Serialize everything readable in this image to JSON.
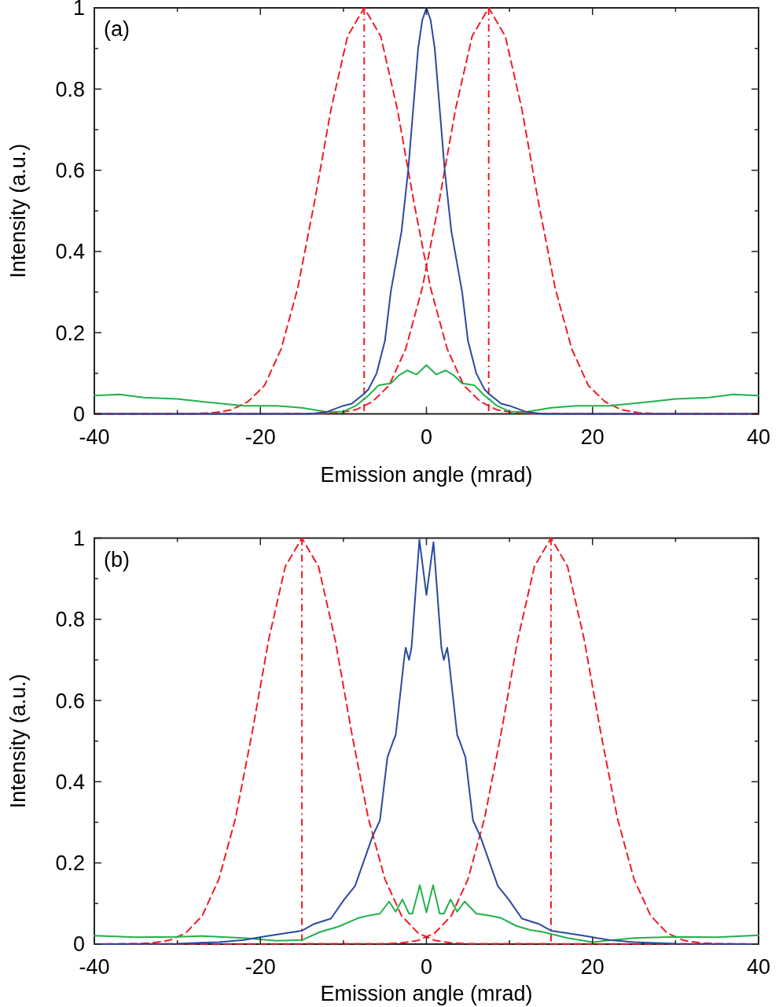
{
  "chart_data": [
    {
      "type": "line",
      "xlabel": "Emission angle (mrad)",
      "ylabel": "Intensity (a.u.)",
      "annotations": [
        "(a)"
      ],
      "xlim": [
        -40,
        40
      ],
      "ylim": [
        0,
        1
      ],
      "xticks": [
        -40,
        {
          "value": -30,
          "label": null
        },
        -20,
        {
          "value": -10,
          "label": null
        },
        0,
        {
          "value": 10,
          "label": null
        },
        20,
        {
          "value": 30,
          "label": null
        },
        40
      ],
      "yticks": [
        0,
        {
          "value": 0.1,
          "label": null
        },
        0.2,
        {
          "value": 0.3,
          "label": null
        },
        0.4,
        {
          "value": 0.5,
          "label": null
        },
        0.6,
        {
          "value": 0.7,
          "label": null
        },
        0.8,
        {
          "value": 0.9,
          "label": null
        },
        1
      ],
      "grid": false,
      "marker": "none",
      "ref_lines": [
        {
          "axis": "x",
          "value": -7.5,
          "color": "#ee1c25",
          "line_style": "dashdot"
        },
        {
          "axis": "x",
          "value": 7.5,
          "color": "#ee1c25",
          "line_style": "dashdot"
        }
      ],
      "series": [
        {
          "color": "#ee1c25",
          "line_style": "dashed",
          "x": [
            -40,
            -27.5,
            -25.5,
            -23.5,
            -21.5,
            -19.5,
            -17.5,
            -15.5,
            -13.5,
            -11.5,
            -9.5,
            -7.5,
            -5.5,
            -3.5,
            -1.5,
            0.5,
            2.5,
            4.5,
            6.5,
            8.5,
            10.5,
            12.5,
            40
          ],
          "values": [
            0,
            0.001,
            0.003,
            0.01,
            0.03,
            0.07,
            0.16,
            0.31,
            0.52,
            0.75,
            0.93,
            1,
            0.93,
            0.75,
            0.52,
            0.31,
            0.16,
            0.07,
            0.03,
            0.01,
            0.003,
            0.001,
            0
          ]
        },
        {
          "color": "#ee1c25",
          "line_style": "dashed",
          "x": [
            -40,
            -12.5,
            -10.5,
            -8.5,
            -6.5,
            -4.5,
            -2.5,
            -0.5,
            1.5,
            3.5,
            5.5,
            7.5,
            9.5,
            11.5,
            13.5,
            15.5,
            17.5,
            19.5,
            21.5,
            23.5,
            25.5,
            27.5,
            40
          ],
          "values": [
            0,
            0.001,
            0.003,
            0.01,
            0.03,
            0.07,
            0.16,
            0.31,
            0.52,
            0.75,
            0.93,
            1,
            0.93,
            0.75,
            0.52,
            0.31,
            0.16,
            0.07,
            0.03,
            0.01,
            0.003,
            0.001,
            0
          ]
        },
        {
          "color": "#22b14c",
          "line_style": "solid",
          "x": [
            -40,
            -37,
            -34,
            -30,
            -27,
            -22,
            -18,
            -15,
            -12,
            -10,
            -8.5,
            -7.5,
            -7,
            -5.8,
            -5,
            -4.3,
            -3.3,
            -2.3,
            -1.2,
            0,
            1.2,
            2.3,
            3.3,
            4.3,
            5,
            5.8,
            7,
            7.5,
            8.5,
            10,
            12,
            15,
            18,
            22,
            27,
            30,
            34,
            37,
            40
          ],
          "values": [
            0.045,
            0.048,
            0.04,
            0.037,
            0.03,
            0.02,
            0.02,
            0.015,
            0.005,
            0.006,
            0.02,
            0.037,
            0.045,
            0.07,
            0.073,
            0.075,
            0.095,
            0.107,
            0.097,
            0.12,
            0.097,
            0.107,
            0.095,
            0.075,
            0.073,
            0.07,
            0.045,
            0.037,
            0.02,
            0.006,
            0.005,
            0.015,
            0.02,
            0.02,
            0.03,
            0.037,
            0.04,
            0.048,
            0.045
          ]
        },
        {
          "color": "#2a4aa0",
          "line_style": "solid",
          "x": [
            -40,
            -14,
            -12,
            -10,
            -9,
            -7.5,
            -7,
            -6,
            -5,
            -4.3,
            -3,
            -2.2,
            -1,
            -0.5,
            0,
            0.5,
            1,
            2.2,
            3,
            4.3,
            5,
            6,
            7,
            7.5,
            9,
            10,
            12,
            14,
            40
          ],
          "values": [
            0,
            0,
            0.005,
            0.02,
            0.025,
            0.05,
            0.06,
            0.1,
            0.18,
            0.3,
            0.45,
            0.6,
            0.9,
            0.97,
            1,
            0.97,
            0.9,
            0.6,
            0.45,
            0.3,
            0.18,
            0.1,
            0.06,
            0.05,
            0.025,
            0.02,
            0.005,
            0,
            0
          ]
        }
      ]
    },
    {
      "type": "line",
      "xlabel": "Emission angle (mrad)",
      "ylabel": "Intensity (a.u.)",
      "annotations": [
        "(b)"
      ],
      "xlim": [
        -40,
        40
      ],
      "ylim": [
        0,
        1
      ],
      "xticks": [
        -40,
        {
          "value": -30,
          "label": null
        },
        -20,
        {
          "value": -10,
          "label": null
        },
        0,
        {
          "value": 10,
          "label": null
        },
        20,
        {
          "value": 30,
          "label": null
        },
        40
      ],
      "yticks": [
        0,
        {
          "value": 0.1,
          "label": null
        },
        0.2,
        {
          "value": 0.3,
          "label": null
        },
        0.4,
        {
          "value": 0.5,
          "label": null
        },
        0.6,
        {
          "value": 0.7,
          "label": null
        },
        0.8,
        {
          "value": 0.9,
          "label": null
        },
        1
      ],
      "grid": false,
      "marker": "none",
      "ref_lines": [
        {
          "axis": "x",
          "value": -15,
          "color": "#ee1c25",
          "line_style": "dashdot"
        },
        {
          "axis": "x",
          "value": 15,
          "color": "#ee1c25",
          "line_style": "dashdot"
        }
      ],
      "series": [
        {
          "color": "#ee1c25",
          "line_style": "dashed",
          "x": [
            -40,
            -35,
            -33,
            -31,
            -29,
            -27,
            -25,
            -23,
            -21,
            -19,
            -17,
            -15,
            -13,
            -11,
            -9,
            -7,
            -5,
            -3,
            -1,
            1,
            3,
            5,
            40
          ],
          "values": [
            0,
            0.001,
            0.003,
            0.009,
            0.027,
            0.07,
            0.16,
            0.31,
            0.52,
            0.75,
            0.93,
            1,
            0.93,
            0.75,
            0.52,
            0.31,
            0.16,
            0.07,
            0.027,
            0.009,
            0.003,
            0.001,
            0
          ]
        },
        {
          "color": "#ee1c25",
          "line_style": "dashed",
          "x": [
            -40,
            -5,
            -3,
            -1,
            1,
            3,
            5,
            7,
            9,
            11,
            13,
            15,
            17,
            19,
            21,
            23,
            25,
            27,
            29,
            31,
            33,
            35,
            40
          ],
          "values": [
            0,
            0.001,
            0.003,
            0.009,
            0.027,
            0.07,
            0.16,
            0.31,
            0.52,
            0.75,
            0.93,
            1,
            0.93,
            0.75,
            0.52,
            0.31,
            0.16,
            0.07,
            0.027,
            0.009,
            0.003,
            0.001,
            0
          ]
        },
        {
          "color": "#22b14c",
          "line_style": "solid",
          "x": [
            -40,
            -35,
            -30,
            -27,
            -22,
            -18,
            -15,
            -12.8,
            -10.6,
            -8.1,
            -7,
            -5.6,
            -4.5,
            -3.7,
            -2.9,
            -2.1,
            -1.7,
            -0.8,
            0,
            0.8,
            1.6,
            2.1,
            2.9,
            3.7,
            4.6,
            6,
            7.6,
            8.9,
            10.8,
            12.5,
            14,
            17,
            20,
            25,
            30,
            35,
            40
          ],
          "values": [
            0.021,
            0.017,
            0.018,
            0.02,
            0.015,
            0.008,
            0.01,
            0.03,
            0.043,
            0.065,
            0.07,
            0.075,
            0.105,
            0.08,
            0.11,
            0.075,
            0.075,
            0.145,
            0.078,
            0.145,
            0.075,
            0.075,
            0.11,
            0.08,
            0.105,
            0.075,
            0.07,
            0.065,
            0.045,
            0.035,
            0.03,
            0.015,
            0.005,
            0.015,
            0.018,
            0.017,
            0.022
          ]
        },
        {
          "color": "#2a4aa0",
          "line_style": "solid",
          "x": [
            -40,
            -30,
            -25,
            -22,
            -19.2,
            -16.6,
            -15,
            -13.5,
            -11.5,
            -9.9,
            -8.6,
            -6.5,
            -5.6,
            -4.7,
            -4,
            -3.7,
            -2.7,
            -2.5,
            -2.1,
            -1.8,
            -0.85,
            0,
            0.85,
            1.8,
            2.1,
            2.5,
            2.7,
            3.7,
            4,
            4.7,
            5.6,
            6.5,
            8.6,
            9.9,
            11.5,
            13.5,
            15,
            16.6,
            19.2,
            22,
            25,
            30,
            40
          ],
          "values": [
            0,
            0.001,
            0.005,
            0.01,
            0.02,
            0.028,
            0.033,
            0.05,
            0.063,
            0.11,
            0.143,
            0.265,
            0.305,
            0.46,
            0.5,
            0.515,
            0.7,
            0.73,
            0.7,
            0.73,
            0.996,
            0.86,
            0.99,
            0.73,
            0.7,
            0.73,
            0.7,
            0.515,
            0.5,
            0.46,
            0.305,
            0.265,
            0.143,
            0.11,
            0.063,
            0.05,
            0.033,
            0.028,
            0.02,
            0.01,
            0.005,
            0.001,
            0
          ]
        }
      ]
    }
  ]
}
